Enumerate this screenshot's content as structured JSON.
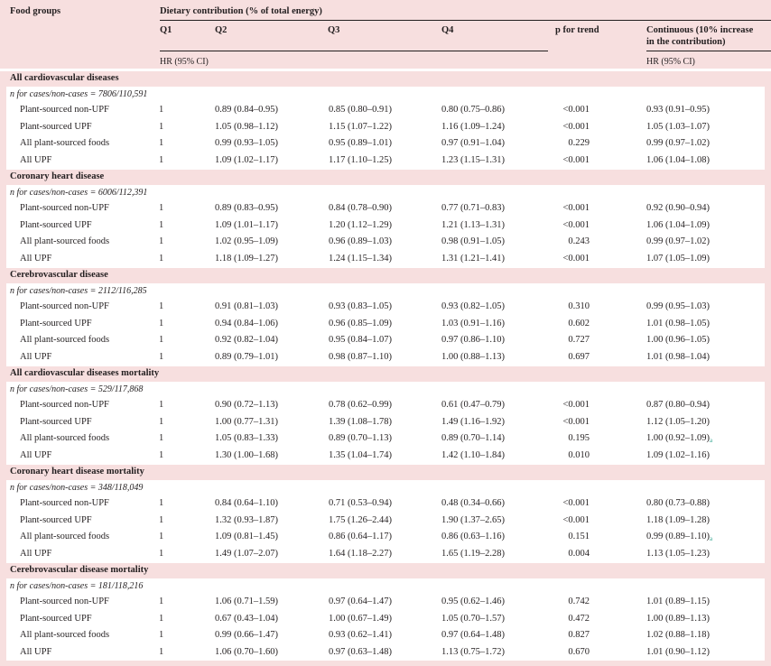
{
  "header": {
    "food_groups": "Food groups",
    "dietary_contribution": "Dietary contribution (% of total energy)",
    "q1": "Q1",
    "q2": "Q2",
    "q3": "Q3",
    "q4": "Q4",
    "p_trend": "p for trend",
    "continuous_line1": "Continuous (10% increase",
    "continuous_line2": "in the contribution)",
    "hr_left": "HR (95% CI)",
    "hr_right": "HR (95% CI)"
  },
  "sections": [
    {
      "title": "All cardiovascular diseases",
      "n_cases": "n for cases/non-cases = 7806/110,591",
      "rows": [
        {
          "name": "Plant-sourced non-UPF",
          "q1": "1",
          "q2": "0.89 (0.84–0.95)",
          "q3": "0.85 (0.80–0.91)",
          "q4": "0.80 (0.75–0.86)",
          "p": "<0.001",
          "cont": "0.93 (0.91–0.95)",
          "sup": ""
        },
        {
          "name": "Plant-sourced UPF",
          "q1": "1",
          "q2": "1.05 (0.98–1.12)",
          "q3": "1.15 (1.07–1.22)",
          "q4": "1.16 (1.09–1.24)",
          "p": "<0.001",
          "cont": "1.05 (1.03–1.07)",
          "sup": ""
        },
        {
          "name": "All plant-sourced foods",
          "q1": "1",
          "q2": "0.99 (0.93–1.05)",
          "q3": "0.95 (0.89–1.01)",
          "q4": "0.97 (0.91–1.04)",
          "p": "0.229",
          "cont": "0.99 (0.97–1.02)",
          "sup": ""
        },
        {
          "name": "All UPF",
          "q1": "1",
          "q2": "1.09 (1.02–1.17)",
          "q3": "1.17 (1.10–1.25)",
          "q4": "1.23 (1.15–1.31)",
          "p": "<0.001",
          "cont": "1.06 (1.04–1.08)",
          "sup": ""
        }
      ]
    },
    {
      "title": "Coronary heart disease",
      "n_cases": "n for cases/non-cases = 6006/112,391",
      "rows": [
        {
          "name": "Plant-sourced non-UPF",
          "q1": "1",
          "q2": "0.89 (0.83–0.95)",
          "q3": "0.84 (0.78–0.90)",
          "q4": "0.77 (0.71–0.83)",
          "p": "<0.001",
          "cont": "0.92 (0.90–0.94)",
          "sup": ""
        },
        {
          "name": "Plant-sourced UPF",
          "q1": "1",
          "q2": "1.09 (1.01–1.17)",
          "q3": "1.20 (1.12–1.29)",
          "q4": "1.21 (1.13–1.31)",
          "p": "<0.001",
          "cont": "1.06 (1.04–1.09)",
          "sup": ""
        },
        {
          "name": "All plant-sourced foods",
          "q1": "1",
          "q2": "1.02 (0.95–1.09)",
          "q3": "0.96 (0.89–1.03)",
          "q4": "0.98 (0.91–1.05)",
          "p": "0.243",
          "cont": "0.99 (0.97–1.02)",
          "sup": ""
        },
        {
          "name": "All UPF",
          "q1": "1",
          "q2": "1.18 (1.09–1.27)",
          "q3": "1.24 (1.15–1.34)",
          "q4": "1.31 (1.21–1.41)",
          "p": "<0.001",
          "cont": "1.07 (1.05–1.09)",
          "sup": ""
        }
      ]
    },
    {
      "title": "Cerebrovascular disease",
      "n_cases": "n for cases/non-cases = 2112/116,285",
      "rows": [
        {
          "name": "Plant-sourced non-UPF",
          "q1": "1",
          "q2": "0.91 (0.81–1.03)",
          "q3": "0.93 (0.83–1.05)",
          "q4": "0.93 (0.82–1.05)",
          "p": "0.310",
          "cont": "0.99 (0.95–1.03)",
          "sup": ""
        },
        {
          "name": "Plant-sourced UPF",
          "q1": "1",
          "q2": "0.94 (0.84–1.06)",
          "q3": "0.96 (0.85–1.09)",
          "q4": "1.03 (0.91–1.16)",
          "p": "0.602",
          "cont": "1.01 (0.98–1.05)",
          "sup": ""
        },
        {
          "name": "All plant-sourced foods",
          "q1": "1",
          "q2": "0.92 (0.82–1.04)",
          "q3": "0.95 (0.84–1.07)",
          "q4": "0.97 (0.86–1.10)",
          "p": "0.727",
          "cont": "1.00 (0.96–1.05)",
          "sup": ""
        },
        {
          "name": "All UPF",
          "q1": "1",
          "q2": "0.89 (0.79–1.01)",
          "q3": "0.98 (0.87–1.10)",
          "q4": "1.00 (0.88–1.13)",
          "p": "0.697",
          "cont": "1.01 (0.98–1.04)",
          "sup": ""
        }
      ]
    },
    {
      "title": "All cardiovascular diseases mortality",
      "n_cases": "n for cases/non-cases = 529/117,868",
      "rows": [
        {
          "name": "Plant-sourced non-UPF",
          "q1": "1",
          "q2": "0.90 (0.72–1.13)",
          "q3": "0.78 (0.62–0.99)",
          "q4": "0.61 (0.47–0.79)",
          "p": "<0.001",
          "cont": "0.87 (0.80–0.94)",
          "sup": ""
        },
        {
          "name": "Plant-sourced UPF",
          "q1": "1",
          "q2": "1.00 (0.77–1.31)",
          "q3": "1.39 (1.08–1.78)",
          "q4": "1.49 (1.16–1.92)",
          "p": "<0.001",
          "cont": "1.12 (1.05–1.20)",
          "sup": ""
        },
        {
          "name": "All plant-sourced foods",
          "q1": "1",
          "q2": "1.05 (0.83–1.33)",
          "q3": "0.89 (0.70–1.13)",
          "q4": "0.89 (0.70–1.14)",
          "p": "0.195",
          "cont": "1.00 (0.92–1.09)",
          "sup": "a"
        },
        {
          "name": "All UPF",
          "q1": "1",
          "q2": "1.30 (1.00–1.68)",
          "q3": "1.35 (1.04–1.74)",
          "q4": "1.42 (1.10–1.84)",
          "p": "0.010",
          "cont": "1.09 (1.02–1.16)",
          "sup": ""
        }
      ]
    },
    {
      "title": "Coronary heart disease mortality",
      "n_cases": "n for cases/non-cases = 348/118,049",
      "rows": [
        {
          "name": "Plant-sourced non-UPF",
          "q1": "1",
          "q2": "0.84 (0.64–1.10)",
          "q3": "0.71 (0.53–0.94)",
          "q4": "0.48 (0.34–0.66)",
          "p": "<0.001",
          "cont": "0.80 (0.73–0.88)",
          "sup": ""
        },
        {
          "name": "Plant-sourced UPF",
          "q1": "1",
          "q2": "1.32 (0.93–1.87)",
          "q3": "1.75 (1.26–2.44)",
          "q4": "1.90 (1.37–2.65)",
          "p": "<0.001",
          "cont": "1.18 (1.09–1.28)",
          "sup": ""
        },
        {
          "name": "All plant-sourced foods",
          "q1": "1",
          "q2": "1.09 (0.81–1.45)",
          "q3": "0.86 (0.64–1.17)",
          "q4": "0.86 (0.63–1.16)",
          "p": "0.151",
          "cont": "0.99 (0.89–1.10)",
          "sup": "a"
        },
        {
          "name": "All UPF",
          "q1": "1",
          "q2": "1.49 (1.07–2.07)",
          "q3": "1.64 (1.18–2.27)",
          "q4": "1.65 (1.19–2.28)",
          "p": "0.004",
          "cont": "1.13 (1.05–1.23)",
          "sup": ""
        }
      ]
    },
    {
      "title": "Cerebrovascular disease mortality",
      "n_cases": "n for cases/non-cases = 181/118,216",
      "rows": [
        {
          "name": "Plant-sourced non-UPF",
          "q1": "1",
          "q2": "1.06 (0.71–1.59)",
          "q3": "0.97 (0.64–1.47)",
          "q4": "0.95 (0.62–1.46)",
          "p": "0.742",
          "cont": "1.01 (0.89–1.15)",
          "sup": ""
        },
        {
          "name": "Plant-sourced UPF",
          "q1": "1",
          "q2": "0.67 (0.43–1.04)",
          "q3": "1.00 (0.67–1.49)",
          "q4": "1.05 (0.70–1.57)",
          "p": "0.472",
          "cont": "1.00 (0.89–1.13)",
          "sup": ""
        },
        {
          "name": "All plant-sourced foods",
          "q1": "1",
          "q2": "0.99 (0.66–1.47)",
          "q3": "0.93 (0.62–1.41)",
          "q4": "0.97 (0.64–1.48)",
          "p": "0.827",
          "cont": "1.02 (0.88–1.18)",
          "sup": ""
        },
        {
          "name": "All UPF",
          "q1": "1",
          "q2": "1.06 (0.70–1.60)",
          "q3": "0.97 (0.63–1.48)",
          "q4": "1.13 (0.75–1.72)",
          "p": "0.670",
          "cont": "1.01 (0.90–1.12)",
          "sup": ""
        }
      ]
    }
  ]
}
